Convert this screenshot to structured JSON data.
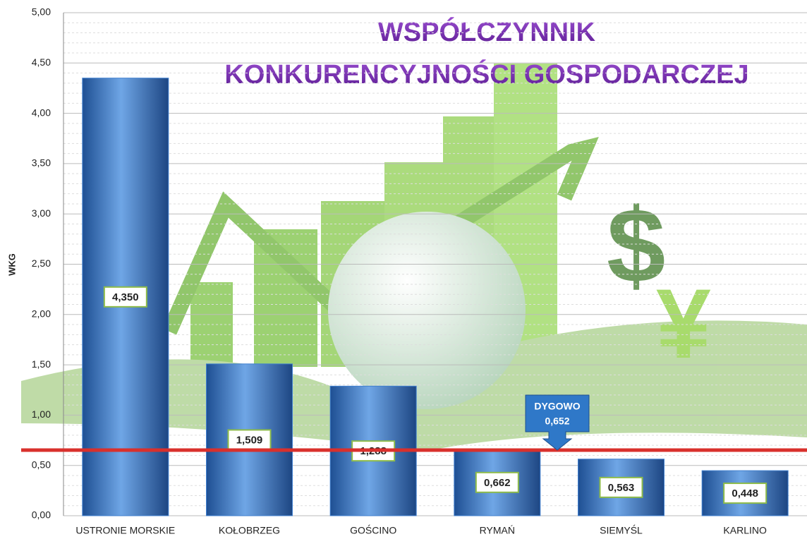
{
  "chart_data": {
    "type": "bar",
    "title": [
      "WSPÓŁCZYNNIK",
      "KONKURENCYJNOŚCI GOSPODARCZEJ"
    ],
    "ylabel": "WKG",
    "categories": [
      "USTRONIE MORSKIE",
      "KOŁOBRZEG",
      "GOŚCINO",
      "RYMAŃ",
      "SIEMYŚL",
      "KARLINO"
    ],
    "values": [
      4.35,
      1.509,
      1.288,
      0.662,
      0.563,
      0.448
    ],
    "value_labels": [
      "4,350",
      "1,509",
      "1,288",
      "0,662",
      "0,563",
      "0,448"
    ],
    "color": "#3f7fcf",
    "ylim": [
      0,
      5
    ],
    "yticks": [
      {
        "value": 0,
        "label": "0,00"
      },
      {
        "value": 0.5,
        "label": "0,50"
      },
      {
        "value": 1,
        "label": "1,00"
      },
      {
        "value": 1.5,
        "label": "1,50"
      },
      {
        "value": 2,
        "label": "2,00"
      },
      {
        "value": 2.5,
        "label": "2,50"
      },
      {
        "value": 3,
        "label": "3,00"
      },
      {
        "value": 3.5,
        "label": "3,50"
      },
      {
        "value": 4,
        "label": "4,00"
      },
      {
        "value": 4.5,
        "label": "4,50"
      },
      {
        "value": 5,
        "label": "5,00"
      }
    ],
    "grid": true,
    "reference_line": {
      "name": "DYGOWO",
      "value": 0.652,
      "label": "0,652",
      "color": "#d9302c"
    }
  }
}
